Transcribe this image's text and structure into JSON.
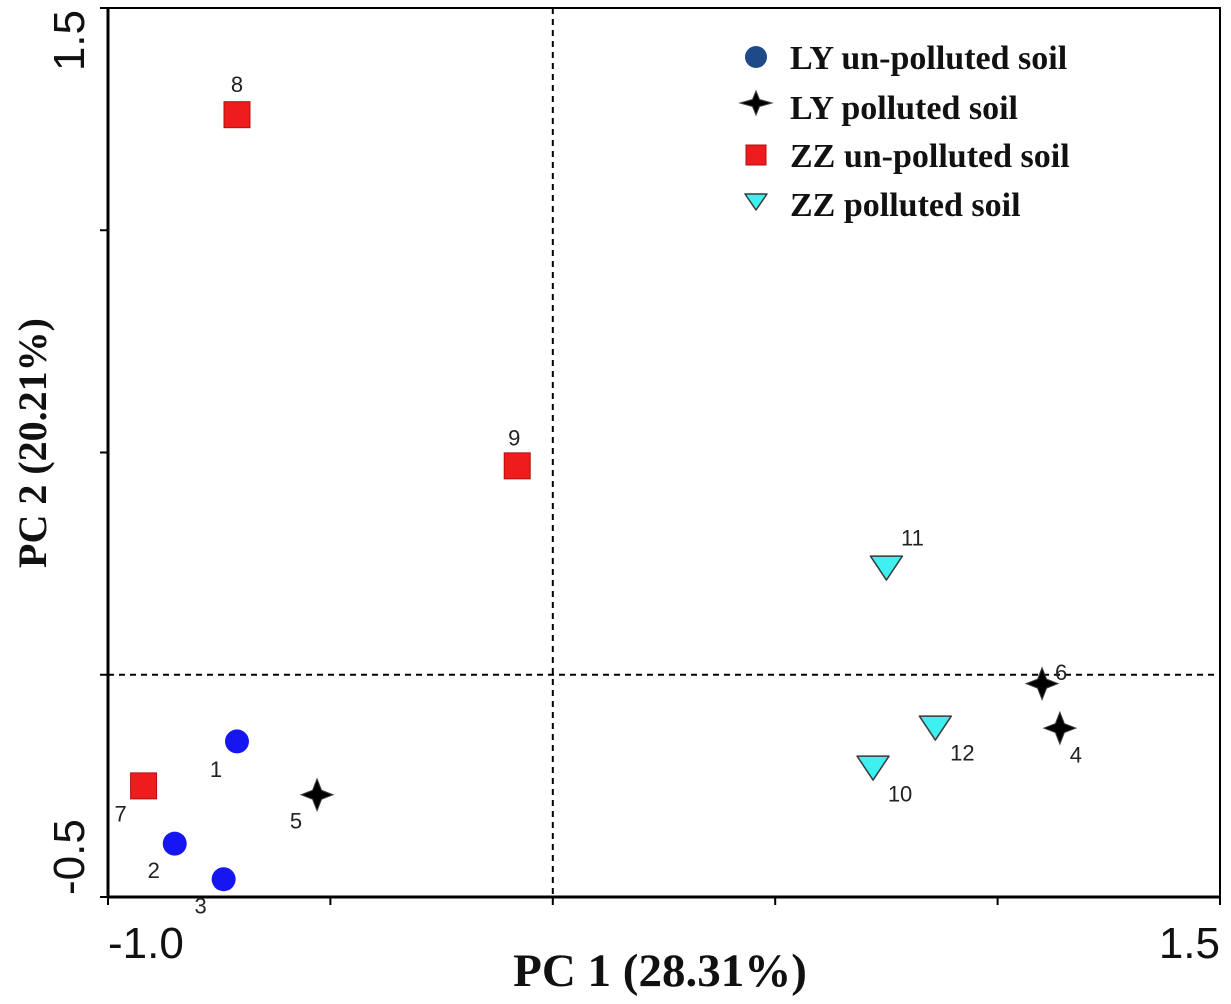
{
  "chart_data": {
    "type": "scatter",
    "xlabel": "PC 1 (28.31%)",
    "ylabel": "PC 2 (20.21%)",
    "x_axis": {
      "min": -1.0,
      "max": 1.5,
      "ticks": [
        -1.0,
        -0.5,
        0.0,
        0.5,
        1.0,
        1.5
      ],
      "tick_labels": [
        {
          "value": -1.0,
          "text": "-1.0"
        },
        {
          "value": 1.5,
          "text": "1.5"
        }
      ]
    },
    "y_axis": {
      "min": -0.5,
      "max": 1.5,
      "ticks": [
        -0.5,
        0.0,
        0.5,
        1.0,
        1.5
      ],
      "tick_labels": [
        {
          "value": 1.5,
          "text": "1.5"
        },
        {
          "value": -0.5,
          "text": "-0.5"
        }
      ]
    },
    "zero_lines": {
      "x": 0.0,
      "y": 0.0
    },
    "grid": false,
    "legend": "top-right",
    "series": [
      {
        "name": "LY un-polluted soil",
        "marker": "circle",
        "color": "#1616f2",
        "legend_color": "#1f4a8a",
        "points": [
          {
            "id": "1",
            "x": -0.71,
            "y": -0.15
          },
          {
            "id": "2",
            "x": -0.85,
            "y": -0.38
          },
          {
            "id": "3",
            "x": -0.74,
            "y": -0.46
          }
        ]
      },
      {
        "name": "LY polluted soil",
        "marker": "star",
        "color": "#000000",
        "points": [
          {
            "id": "4",
            "x": 1.14,
            "y": -0.12
          },
          {
            "id": "5",
            "x": -0.53,
            "y": -0.27
          },
          {
            "id": "6",
            "x": 1.1,
            "y": -0.02
          }
        ]
      },
      {
        "name": "ZZ un-polluted soil",
        "marker": "square",
        "color": "#ee1c1c",
        "points": [
          {
            "id": "7",
            "x": -0.92,
            "y": -0.25
          },
          {
            "id": "8",
            "x": -0.71,
            "y": 1.26
          },
          {
            "id": "9",
            "x": -0.08,
            "y": 0.47
          }
        ]
      },
      {
        "name": "ZZ polluted soil",
        "marker": "triangle-down",
        "color": "#3ef0f0",
        "points": [
          {
            "id": "10",
            "x": 0.72,
            "y": -0.21
          },
          {
            "id": "11",
            "x": 0.75,
            "y": 0.24
          },
          {
            "id": "12",
            "x": 0.86,
            "y": -0.12
          }
        ]
      }
    ]
  }
}
